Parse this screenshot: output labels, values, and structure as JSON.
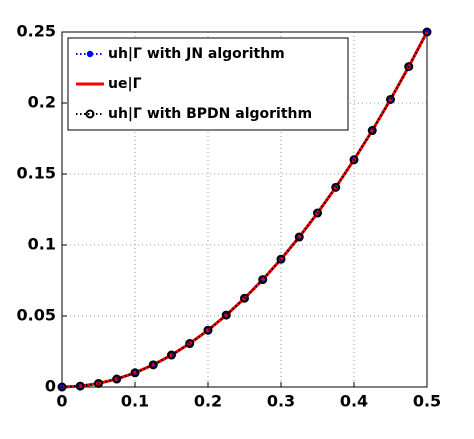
{
  "chart_data": {
    "type": "line",
    "x": [
      0,
      0.025,
      0.05,
      0.075,
      0.1,
      0.125,
      0.15,
      0.175,
      0.2,
      0.225,
      0.25,
      0.275,
      0.3,
      0.325,
      0.35,
      0.375,
      0.4,
      0.425,
      0.45,
      0.475,
      0.5
    ],
    "series": [
      {
        "name": "uh|Γ with JN algorithm",
        "color": "#0000ff",
        "line_style": "dotted",
        "marker": "dot",
        "values": [
          0,
          0.000625,
          0.0025,
          0.005625,
          0.01,
          0.015625,
          0.0225,
          0.030625,
          0.04,
          0.050625,
          0.0625,
          0.075625,
          0.09,
          0.105625,
          0.1225,
          0.140625,
          0.16,
          0.180625,
          0.2025,
          0.225625,
          0.25
        ]
      },
      {
        "name": "ue|Γ",
        "color": "#ff0000",
        "line_style": "solid",
        "marker": "none",
        "values": [
          0,
          0.000625,
          0.0025,
          0.005625,
          0.01,
          0.015625,
          0.0225,
          0.030625,
          0.04,
          0.050625,
          0.0625,
          0.075625,
          0.09,
          0.105625,
          0.1225,
          0.140625,
          0.16,
          0.180625,
          0.2025,
          0.225625,
          0.25
        ]
      },
      {
        "name": "uh|Γ with BPDN algorithm",
        "color": "#000000",
        "line_style": "dotted",
        "marker": "circle",
        "values": [
          0,
          0.000625,
          0.0025,
          0.005625,
          0.01,
          0.015625,
          0.0225,
          0.030625,
          0.04,
          0.050625,
          0.0625,
          0.075625,
          0.09,
          0.105625,
          0.1225,
          0.140625,
          0.16,
          0.180625,
          0.2025,
          0.225625,
          0.25
        ]
      }
    ],
    "xlim": [
      0,
      0.5
    ],
    "xticks": [
      0,
      0.1,
      0.2,
      0.3,
      0.4,
      0.5
    ],
    "ylim": [
      0,
      0.25
    ],
    "yticks": [
      0,
      0.05,
      0.1,
      0.15,
      0.2,
      0.25
    ],
    "grid": true,
    "legend": "upper left"
  }
}
